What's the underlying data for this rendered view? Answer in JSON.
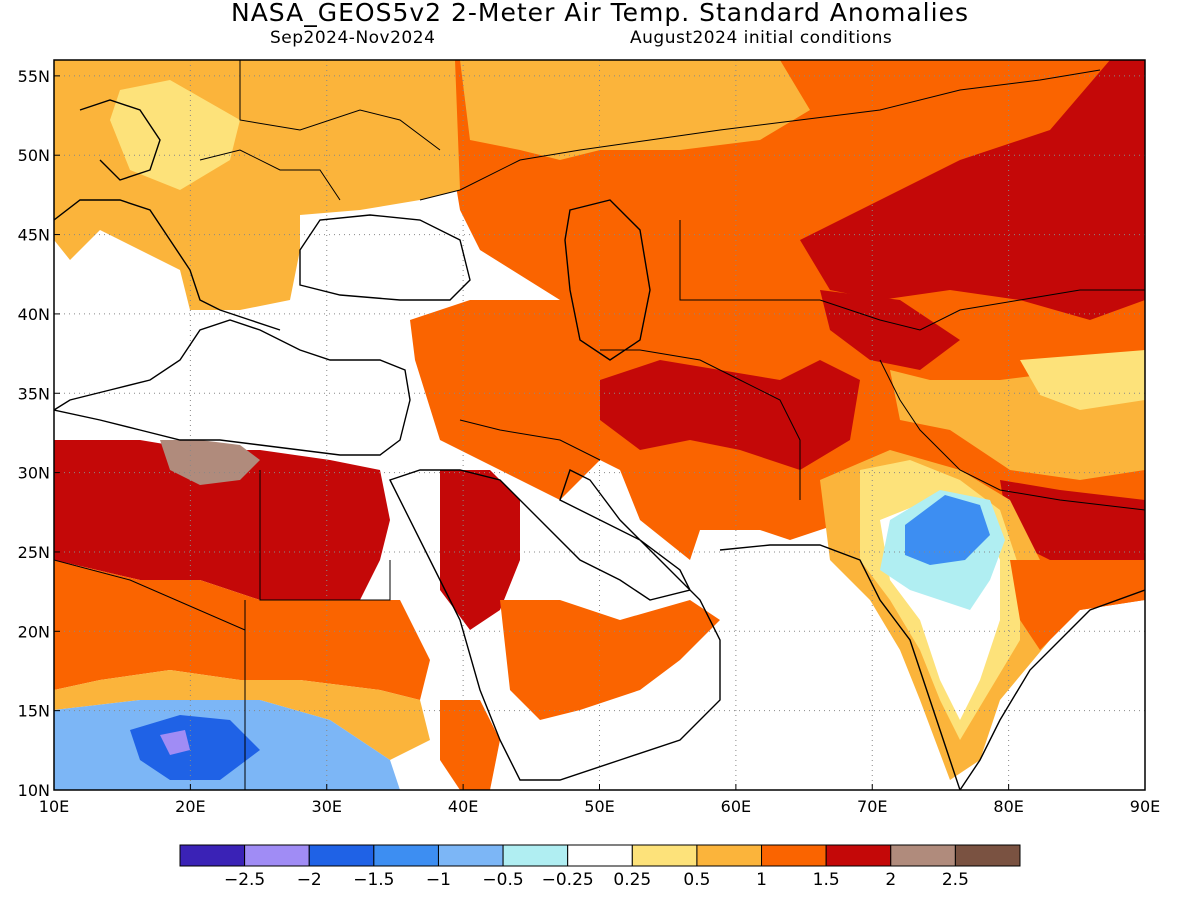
{
  "title": "NASA_GEOS5v2 2-Meter Air Temp. Standard Anomalies",
  "season": "Sep2024-Nov2024",
  "init": "August2024 initial conditions",
  "map": {
    "lon_range": [
      10,
      90
    ],
    "lat_range": [
      10,
      56
    ],
    "lon_ticks": [
      {
        "v": 10,
        "t": "10E"
      },
      {
        "v": 20,
        "t": "20E"
      },
      {
        "v": 30,
        "t": "30E"
      },
      {
        "v": 40,
        "t": "40E"
      },
      {
        "v": 50,
        "t": "50E"
      },
      {
        "v": 60,
        "t": "60E"
      },
      {
        "v": 70,
        "t": "70E"
      },
      {
        "v": 80,
        "t": "80E"
      },
      {
        "v": 90,
        "t": "90E"
      }
    ],
    "lat_ticks": [
      {
        "v": 10,
        "t": "10N"
      },
      {
        "v": 15,
        "t": "15N"
      },
      {
        "v": 20,
        "t": "20N"
      },
      {
        "v": 25,
        "t": "25N"
      },
      {
        "v": 30,
        "t": "30N"
      },
      {
        "v": 35,
        "t": "35N"
      },
      {
        "v": 40,
        "t": "40N"
      },
      {
        "v": 45,
        "t": "45N"
      },
      {
        "v": 50,
        "t": "50N"
      },
      {
        "v": 55,
        "t": "55N"
      }
    ],
    "grid": "dotted",
    "projection": "lat-lon"
  },
  "colorbar": {
    "colors": [
      "#3a22b6",
      "#a08cf5",
      "#1f62e6",
      "#3d8ef2",
      "#7cb6f6",
      "#b0eef2",
      "#ffffff",
      "#fde27a",
      "#fbb43b",
      "#fa6400",
      "#c40808",
      "#b08b7c",
      "#7a5241"
    ],
    "labels": [
      "-2.5",
      "-2",
      "-1.5",
      "-1",
      "-0.5",
      "-0.25",
      "0.25",
      "0.5",
      "1",
      "1.5",
      "2",
      "2.5"
    ]
  }
}
